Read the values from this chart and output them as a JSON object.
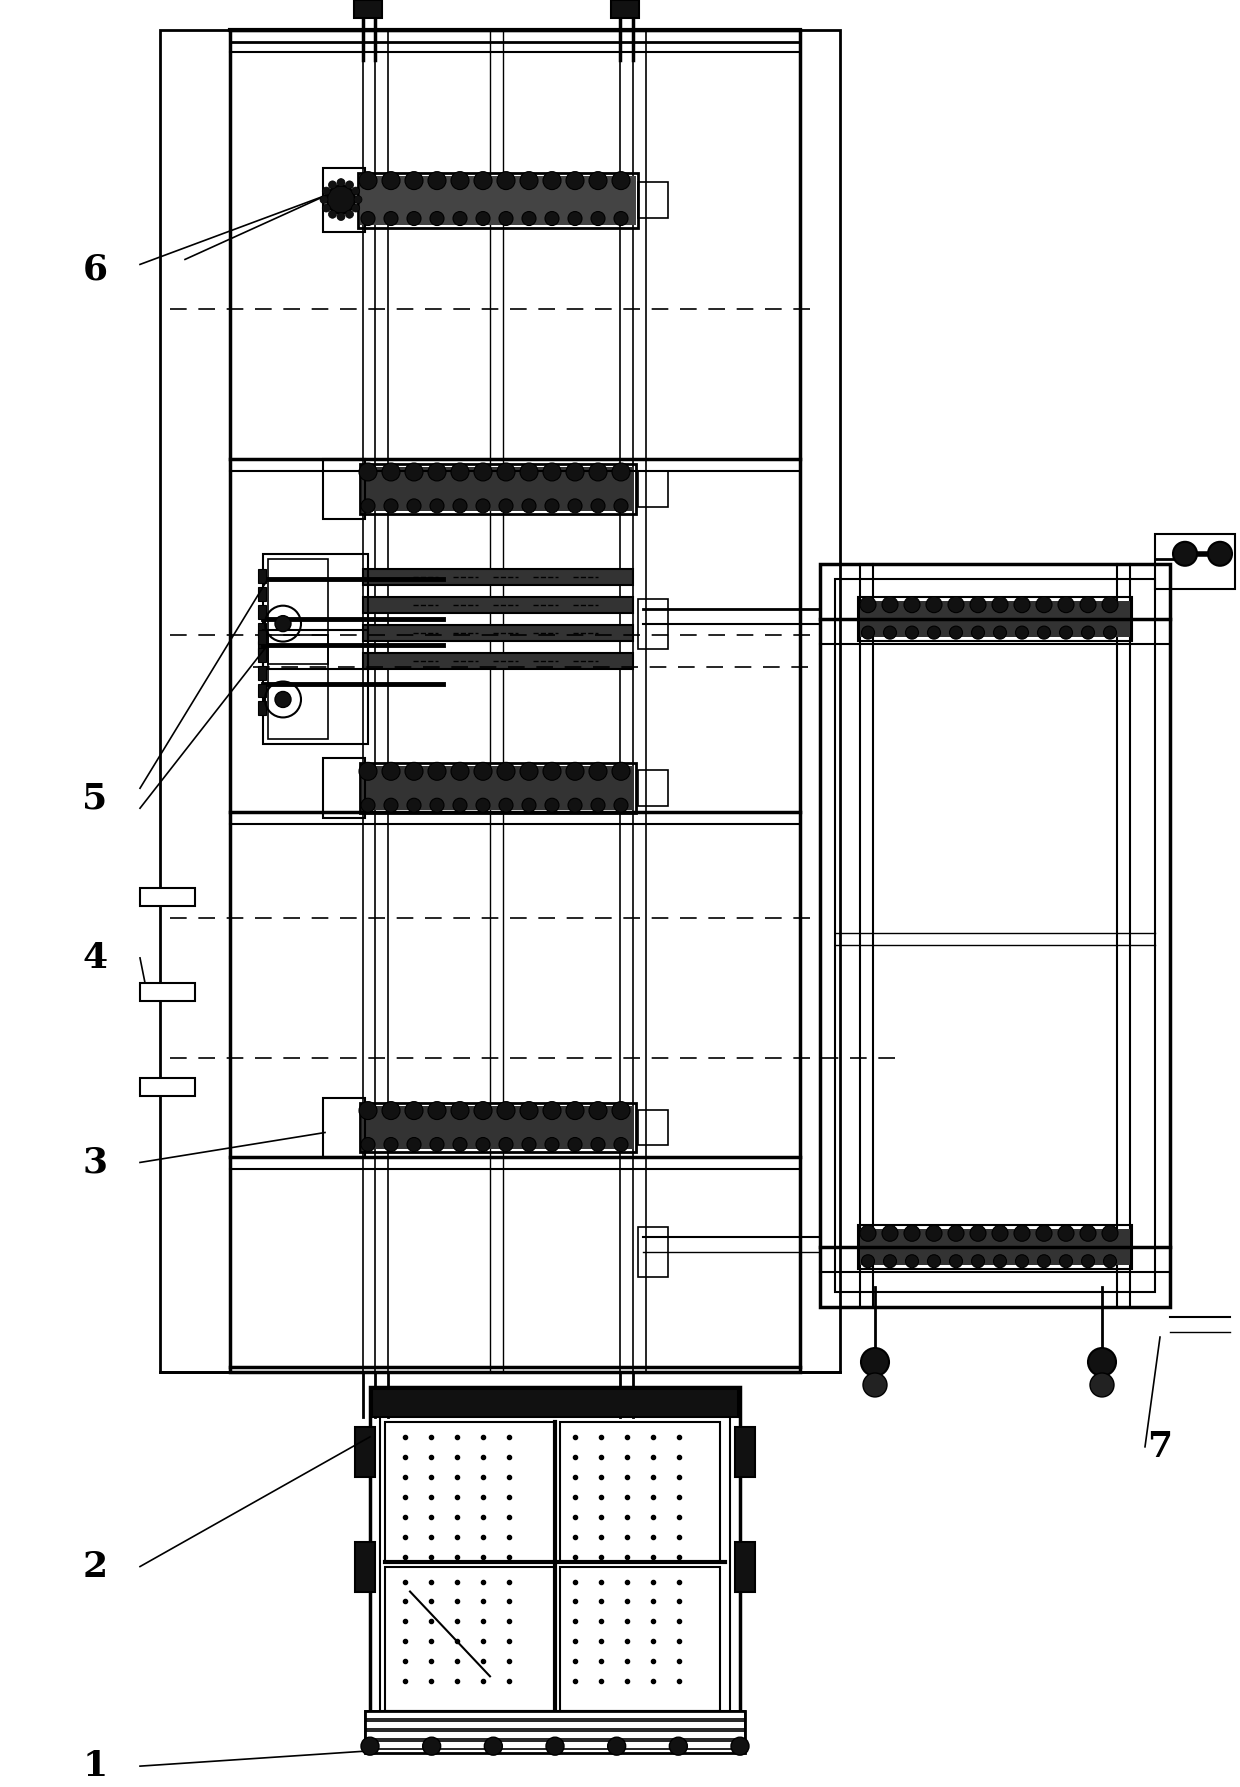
{
  "bg_color": "#ffffff",
  "line_color": "#000000",
  "fig_width": 12.4,
  "fig_height": 17.87,
  "dpi": 100
}
